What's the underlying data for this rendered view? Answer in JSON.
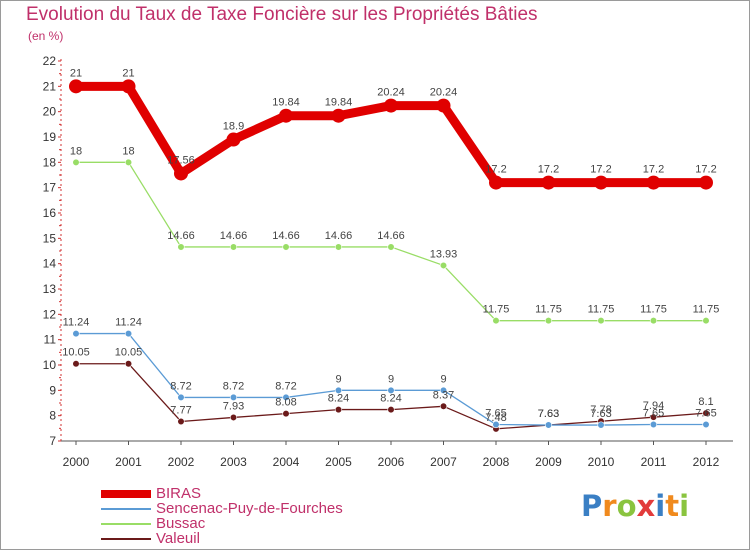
{
  "header": {
    "title": "Evolution du Taux de Taxe Foncière sur les Propriétés Bâties",
    "subtitle": "(en %)"
  },
  "chart_data": {
    "type": "line",
    "title": "Evolution du Taux de Taxe Foncière sur les Propriétés Bâties",
    "ylabel": "(en %)",
    "xlabel": "",
    "ylim": [
      7,
      22
    ],
    "yticks": [
      7,
      8,
      9,
      10,
      11,
      12,
      13,
      14,
      15,
      16,
      17,
      18,
      19,
      20,
      21,
      22
    ],
    "grid": false,
    "legend_position": "bottom-left",
    "categories": [
      "2000",
      "2001",
      "2002",
      "2003",
      "2004",
      "2005",
      "2006",
      "2007",
      "2008",
      "2009",
      "2010",
      "2011",
      "2012"
    ],
    "series": [
      {
        "name": "BIRAS",
        "color": "#e00000",
        "values": [
          21,
          21,
          17.56,
          18.9,
          19.84,
          19.84,
          20.24,
          20.24,
          17.2,
          17.2,
          17.2,
          17.2,
          17.2
        ],
        "labels": [
          "21",
          "21",
          "17.56",
          "18.9",
          "19.84",
          "19.84",
          "20.24",
          "20.24",
          "17.2",
          "17.2",
          "17.2",
          "17.2",
          "17.2"
        ]
      },
      {
        "name": "Sencenac-Puy-de-Fourches",
        "color": "#5b9bd5",
        "values": [
          11.24,
          11.24,
          8.72,
          8.72,
          8.72,
          9,
          9,
          9,
          7.65,
          7.63,
          7.63,
          7.65,
          7.65
        ],
        "labels": [
          "11.24",
          "11.24",
          "8.72",
          "8.72",
          "8.72",
          "9",
          "9",
          "9",
          "7.65",
          "7.63",
          "7.63",
          "7.65",
          "7.65"
        ]
      },
      {
        "name": "Bussac",
        "color": "#99dd66",
        "values": [
          18,
          18,
          14.66,
          14.66,
          14.66,
          14.66,
          14.66,
          13.93,
          11.75,
          11.75,
          11.75,
          11.75,
          11.75
        ],
        "labels": [
          "18",
          "18",
          "14.66",
          "14.66",
          "14.66",
          "14.66",
          "14.66",
          "13.93",
          "11.75",
          "11.75",
          "11.75",
          "11.75",
          "11.75"
        ]
      },
      {
        "name": "Valeuil",
        "color": "#6b1a1a",
        "values": [
          10.05,
          10.05,
          7.77,
          7.93,
          8.08,
          8.24,
          8.24,
          8.37,
          7.48,
          7.63,
          7.78,
          7.94,
          8.1
        ],
        "labels": [
          "10.05",
          "10.05",
          "7.77",
          "7.93",
          "8.08",
          "8.24",
          "8.24",
          "8.37",
          "7.48",
          "7.63",
          "7.78",
          "7.94",
          "8.1"
        ]
      }
    ]
  },
  "legend": {
    "items": [
      {
        "label": "BIRAS",
        "color": "#e00000"
      },
      {
        "label": "Sencenac-Puy-de-Fourches",
        "color": "#5b9bd5"
      },
      {
        "label": "Bussac",
        "color": "#99dd66"
      },
      {
        "label": "Valeuil",
        "color": "#6b1a1a"
      }
    ]
  },
  "logo": {
    "text": "Proxiti",
    "letters": [
      {
        "char": "P",
        "color": "#3a7fc4"
      },
      {
        "char": "r",
        "color": "#f08a1e"
      },
      {
        "char": "o",
        "color": "#8ac43f"
      },
      {
        "char": "x",
        "color": "#e23b3b"
      },
      {
        "char": "i",
        "color": "#3a7fc4"
      },
      {
        "char": "t",
        "color": "#f08a1e"
      },
      {
        "char": "i",
        "color": "#8ac43f"
      }
    ]
  }
}
